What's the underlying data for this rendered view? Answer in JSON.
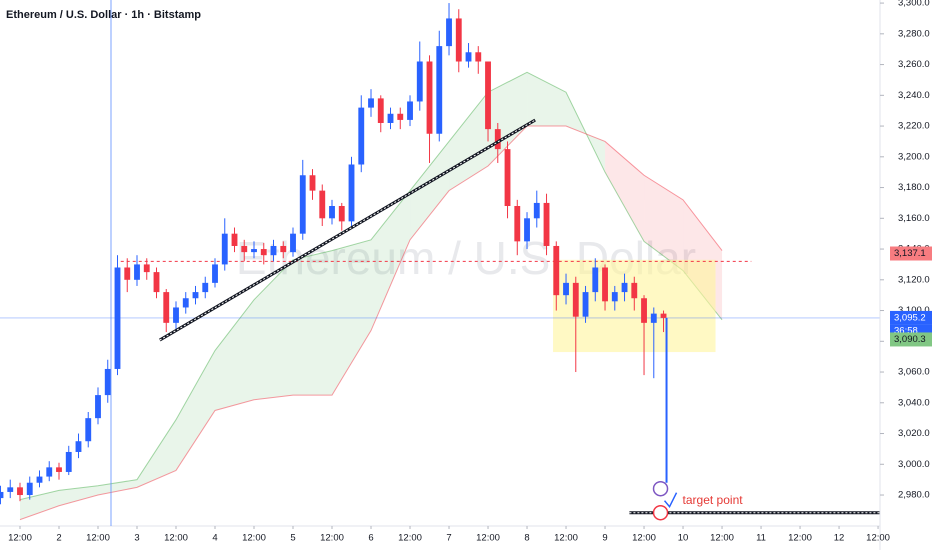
{
  "chart_data": {
    "type": "candlestick",
    "title": "Ethereum / U.S. Dollar · 1h · Bitstamp",
    "watermark": "Ethereum / U.S. Dollar",
    "up_color": "#2962ff",
    "down_color": "#f23645",
    "xlim": [
      -6.15,
      264.6
    ],
    "ylim": [
      2960.5,
      3302
    ],
    "xticks": [
      {
        "value": 0,
        "label": "12:00"
      },
      {
        "value": 12,
        "label": "2"
      },
      {
        "value": 24,
        "label": "12:00"
      },
      {
        "value": 36,
        "label": "3"
      },
      {
        "value": 48,
        "label": "12:00"
      },
      {
        "value": 60,
        "label": "4"
      },
      {
        "value": 72,
        "label": "12:00"
      },
      {
        "value": 84,
        "label": "5"
      },
      {
        "value": 96,
        "label": "12:00"
      },
      {
        "value": 108,
        "label": "6"
      },
      {
        "value": 120,
        "label": "12:00"
      },
      {
        "value": 132,
        "label": "7"
      },
      {
        "value": 144,
        "label": "12:00"
      },
      {
        "value": 156,
        "label": "8"
      },
      {
        "value": 168,
        "label": "12:00"
      },
      {
        "value": 180,
        "label": "9"
      },
      {
        "value": 192,
        "label": "12:00"
      },
      {
        "value": 204,
        "label": "10"
      },
      {
        "value": 216,
        "label": "12:00"
      },
      {
        "value": 228,
        "label": "11"
      },
      {
        "value": 240,
        "label": "12:00"
      },
      {
        "value": 252,
        "label": "12"
      },
      {
        "value": 264,
        "label": "12:00"
      }
    ],
    "yticks": [
      {
        "value": 2980,
        "label": "2,980.0"
      },
      {
        "value": 3000,
        "label": "3,000.0"
      },
      {
        "value": 3020,
        "label": "3,020.0"
      },
      {
        "value": 3040,
        "label": "3,040.0"
      },
      {
        "value": 3060,
        "label": "3,060.0"
      },
      {
        "value": 3080,
        "label": "3,080.0"
      },
      {
        "value": 3100,
        "label": "3,100.0"
      },
      {
        "value": 3120,
        "label": "3,120.0"
      },
      {
        "value": 3140,
        "label": "3,140.0"
      },
      {
        "value": 3160,
        "label": "3,160.0"
      },
      {
        "value": 3180,
        "label": "3,180.0"
      },
      {
        "value": 3200,
        "label": "3,200.0"
      },
      {
        "value": 3220,
        "label": "3,220.0"
      },
      {
        "value": 3240,
        "label": "3,240.0"
      },
      {
        "value": 3260,
        "label": "3,260.0"
      },
      {
        "value": 3280,
        "label": "3,280.0"
      },
      {
        "value": 3300,
        "label": "3,300.0"
      }
    ],
    "x": [
      -6,
      -3,
      0,
      3,
      6,
      9,
      12,
      15,
      18,
      21,
      24,
      27,
      30,
      33,
      36,
      39,
      42,
      45,
      48,
      51,
      54,
      57,
      60,
      63,
      66,
      69,
      72,
      75,
      78,
      81,
      84,
      87,
      90,
      93,
      96,
      99,
      102,
      105,
      108,
      111,
      114,
      117,
      120,
      123,
      126,
      129,
      132,
      135,
      138,
      141,
      144,
      147,
      150,
      153,
      156,
      159,
      162,
      165,
      168,
      171,
      174,
      177,
      180,
      183,
      186,
      189,
      192,
      195,
      198
    ],
    "open": [
      2978,
      2982,
      2985,
      2980,
      2988,
      2992,
      2998,
      2995,
      3008,
      3015,
      3030,
      3045,
      3062,
      3128,
      3120,
      3130,
      3125,
      3112,
      3092,
      3102,
      3108,
      3112,
      3118,
      3130,
      3150,
      3142,
      3138,
      3140,
      3136,
      3142,
      3138,
      3150,
      3188,
      3178,
      3160,
      3168,
      3158,
      3195,
      3232,
      3238,
      3222,
      3228,
      3224,
      3236,
      3262,
      3215,
      3272,
      3290,
      3262,
      3268,
      3262,
      3218,
      3205,
      3168,
      3145,
      3160,
      3170,
      3142,
      3110,
      3118,
      3096,
      3112,
      3128,
      3106,
      3112,
      3118,
      3108,
      3092,
      3098
    ],
    "high": [
      2986,
      2990,
      2988,
      2992,
      2996,
      3002,
      3001,
      3012,
      3020,
      3034,
      3050,
      3068,
      3136,
      3134,
      3136,
      3134,
      3128,
      3114,
      3106,
      3112,
      3116,
      3122,
      3134,
      3160,
      3154,
      3146,
      3145,
      3144,
      3146,
      3145,
      3154,
      3198,
      3192,
      3182,
      3172,
      3170,
      3200,
      3240,
      3244,
      3240,
      3232,
      3232,
      3240,
      3275,
      3266,
      3282,
      3300,
      3296,
      3274,
      3272,
      3262,
      3222,
      3210,
      3172,
      3164,
      3178,
      3176,
      3145,
      3124,
      3122,
      3116,
      3134,
      3130,
      3116,
      3124,
      3122,
      3110,
      3102,
      3100
    ],
    "low": [
      2974,
      2978,
      2976,
      2977,
      2985,
      2989,
      2990,
      2993,
      3004,
      3011,
      3026,
      3040,
      3058,
      3112,
      3116,
      3120,
      3108,
      3086,
      3088,
      3098,
      3104,
      3108,
      3115,
      3126,
      3138,
      3132,
      3134,
      3130,
      3132,
      3134,
      3135,
      3146,
      3172,
      3155,
      3156,
      3152,
      3154,
      3190,
      3226,
      3216,
      3218,
      3218,
      3220,
      3230,
      3196,
      3210,
      3266,
      3255,
      3258,
      3254,
      3210,
      3196,
      3160,
      3136,
      3140,
      3154,
      3136,
      3100,
      3104,
      3060,
      3092,
      3106,
      3100,
      3100,
      3106,
      3100,
      3058,
      3056,
      3086
    ],
    "close": [
      2982,
      2985,
      2980,
      2988,
      2992,
      2998,
      2995,
      3008,
      3015,
      3030,
      3045,
      3062,
      3128,
      3120,
      3130,
      3125,
      3112,
      3092,
      3102,
      3108,
      3112,
      3118,
      3130,
      3150,
      3142,
      3138,
      3140,
      3136,
      3142,
      3138,
      3150,
      3188,
      3178,
      3160,
      3168,
      3158,
      3195,
      3232,
      3238,
      3222,
      3228,
      3224,
      3236,
      3262,
      3215,
      3272,
      3290,
      3262,
      3268,
      3262,
      3218,
      3205,
      3168,
      3145,
      3160,
      3170,
      3142,
      3110,
      3118,
      3096,
      3112,
      3128,
      3106,
      3112,
      3118,
      3108,
      3092,
      3098,
      3095.2
    ],
    "cloud": {
      "x": [
        0,
        12,
        24,
        36,
        48,
        60,
        72,
        84,
        96,
        108,
        120,
        132,
        144,
        156,
        168,
        180,
        192,
        204,
        216
      ],
      "span_a": [
        2977,
        2983,
        2986,
        2990,
        3029,
        3074,
        3107,
        3133,
        3139,
        3146,
        3178,
        3210,
        3242,
        3255,
        3242,
        3190,
        3145,
        3126,
        3094
      ],
      "span_b": [
        2964,
        2973,
        2980,
        2985,
        2996,
        3035,
        3042,
        3045,
        3045,
        3087,
        3146,
        3178,
        3194,
        3220,
        3220,
        3210,
        3188,
        3172,
        3139
      ],
      "up_color": "#4caf50",
      "down_color": "#f23645"
    },
    "resistance": {
      "value": 3132,
      "x": [
        31,
        225
      ]
    },
    "trendline": {
      "x": [
        43,
        158.5
      ],
      "y": [
        3080.8,
        3223.9
      ]
    },
    "zone": {
      "x": [
        164,
        214
      ],
      "y": [
        3073,
        3133
      ]
    },
    "target": {
      "value": 2968.5,
      "x": [
        187.5,
        264.6
      ],
      "label": "target point"
    },
    "price_tags": [
      {
        "value": 3137.1,
        "label": "3,137.1",
        "color": "#f77c80"
      },
      {
        "value": 3095.2,
        "label": "3,095.2",
        "color": "#2962ff"
      },
      {
        "value": 3090.3,
        "label": "3,090.3",
        "color": "#81c784"
      }
    ],
    "countdown": "36:58"
  }
}
